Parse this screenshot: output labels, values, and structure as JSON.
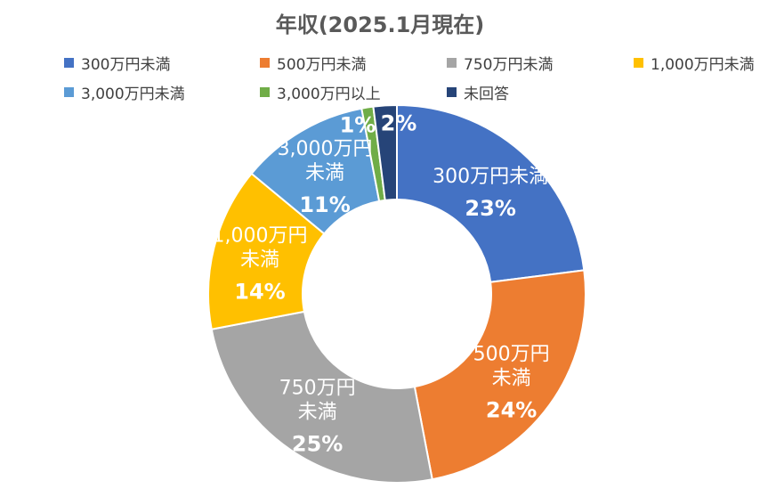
{
  "chart_data": {
    "type": "pie",
    "title": "年収(2025.1月現在)",
    "categories": [
      "300万円未満",
      "500万円未満",
      "750万円未満",
      "1,000万円未満",
      "3,000万円未満",
      "3,000万円以上",
      "未回答"
    ],
    "values": [
      23,
      24,
      25,
      14,
      11,
      1,
      2
    ],
    "value_labels": [
      "23%",
      "24%",
      "25%",
      "14%",
      "11%",
      "1%",
      "2%"
    ],
    "slice_text": [
      [
        "300万円未満"
      ],
      [
        "500万円",
        "未満"
      ],
      [
        "750万円",
        "未満"
      ],
      [
        "1,000万円",
        "未満"
      ],
      [
        "3,000万円",
        "未満"
      ],
      [],
      []
    ],
    "colors": [
      "#4472C4",
      "#ED7D31",
      "#A5A5A5",
      "#FFC000",
      "#5B9BD5",
      "#70AD47",
      "#264478"
    ],
    "legend_position": "top",
    "donut": true
  }
}
